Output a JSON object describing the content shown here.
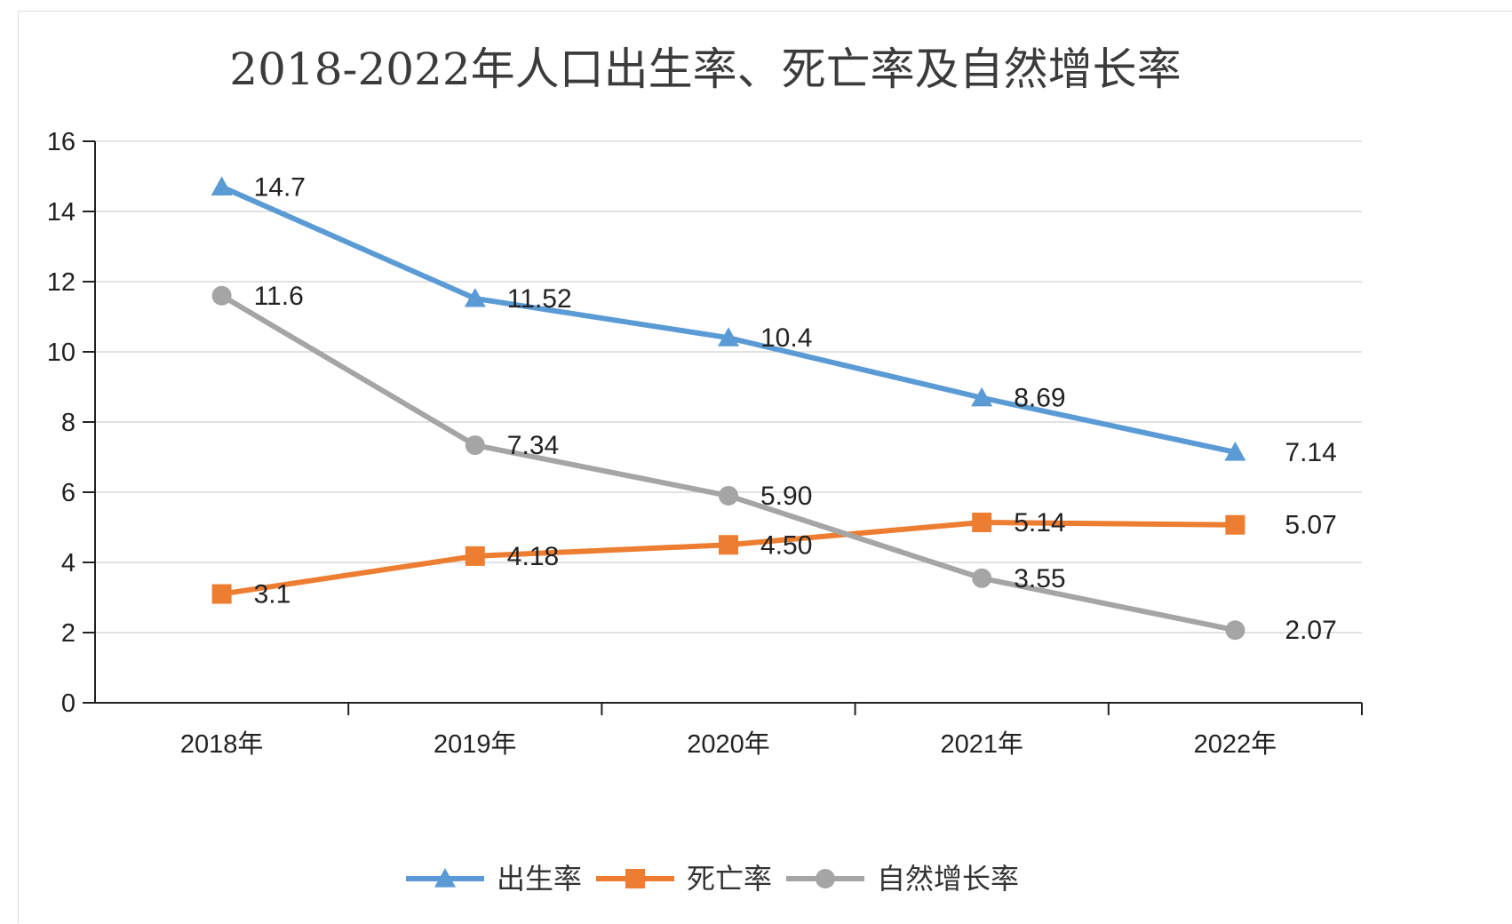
{
  "chart_data": {
    "type": "line",
    "title": "2018-2022年人口出生率、死亡率及自然增长率",
    "xlabel": "",
    "ylabel": "",
    "categories": [
      "2018年",
      "2019年",
      "2020年",
      "2021年",
      "2022年"
    ],
    "ylim": [
      0,
      16
    ],
    "yticks": [
      0,
      2,
      4,
      6,
      8,
      10,
      12,
      14,
      16
    ],
    "grid": true,
    "legend_position": "bottom",
    "series": [
      {
        "name": "出生率",
        "values": [
          14.7,
          11.52,
          10.4,
          8.69,
          7.14
        ],
        "labels": [
          "14.7",
          "11.52",
          "10.4",
          "8.69",
          "7.14"
        ],
        "color": "#5b9bd5",
        "marker": "triangle"
      },
      {
        "name": "死亡率",
        "values": [
          3.1,
          4.18,
          4.5,
          5.14,
          5.07
        ],
        "labels": [
          "3.1",
          "4.18",
          "4.50",
          "5.14",
          "5.07"
        ],
        "color": "#ed7d31",
        "marker": "square"
      },
      {
        "name": "自然增长率",
        "values": [
          11.6,
          7.34,
          5.9,
          3.55,
          2.07
        ],
        "labels": [
          "11.6",
          "7.34",
          "5.90",
          "3.55",
          "2.07"
        ],
        "color": "#a5a5a5",
        "marker": "circle"
      }
    ]
  }
}
